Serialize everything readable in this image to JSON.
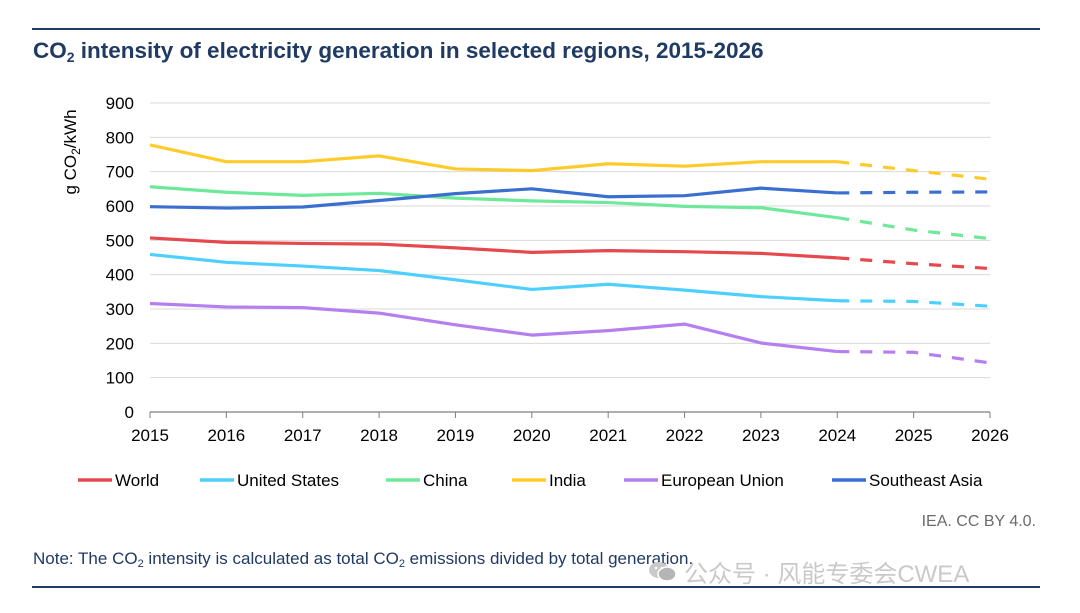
{
  "header": {
    "title_prefix": "CO",
    "title_sub": "2",
    "title_rest": " intensity of electricity generation in selected regions, 2015-2026"
  },
  "source": "IEA. CC BY 4.0.",
  "note": {
    "text1": "Note: The CO",
    "sub1": "2",
    "text2": " intensity is calculated as total CO",
    "sub2": "2",
    "text3": " emissions divided by total generation."
  },
  "watermark": {
    "icon": "wechat-icon",
    "text": "公众号 · 风能专委会CWEA"
  },
  "chart_data": {
    "type": "line",
    "title": "CO2 intensity of electricity generation in selected regions, 2015-2026",
    "xlabel": "",
    "ylabel": "g CO2/kWh",
    "ylim": [
      0,
      900
    ],
    "yticks": [
      0,
      100,
      200,
      300,
      400,
      500,
      600,
      700,
      800,
      900
    ],
    "x": [
      2015,
      2016,
      2017,
      2018,
      2019,
      2020,
      2021,
      2022,
      2023,
      2024,
      2025,
      2026
    ],
    "forecast_from": 2024,
    "grid": "horizontal",
    "legend_position": "bottom",
    "series": [
      {
        "name": "World",
        "color": "#e5484d",
        "values": [
          507,
          494,
          491,
          489,
          478,
          465,
          470,
          467,
          462,
          449,
          432,
          418
        ]
      },
      {
        "name": "United States",
        "color": "#4dcfff",
        "values": [
          459,
          436,
          425,
          412,
          385,
          357,
          372,
          355,
          336,
          324,
          322,
          308
        ]
      },
      {
        "name": "China",
        "color": "#6ee89a",
        "values": [
          656,
          640,
          631,
          637,
          623,
          615,
          610,
          599,
          595,
          566,
          530,
          505
        ]
      },
      {
        "name": "India",
        "color": "#ffcb2b",
        "values": [
          778,
          729,
          729,
          746,
          708,
          703,
          723,
          716,
          729,
          729,
          703,
          678
        ]
      },
      {
        "name": "European Union",
        "color": "#b57fef",
        "values": [
          316,
          306,
          304,
          288,
          254,
          224,
          237,
          256,
          201,
          176,
          174,
          143
        ]
      },
      {
        "name": "Southeast Asia",
        "color": "#3a6fd0",
        "values": [
          598,
          594,
          597,
          616,
          636,
          650,
          627,
          630,
          652,
          638,
          640,
          641
        ]
      }
    ]
  }
}
